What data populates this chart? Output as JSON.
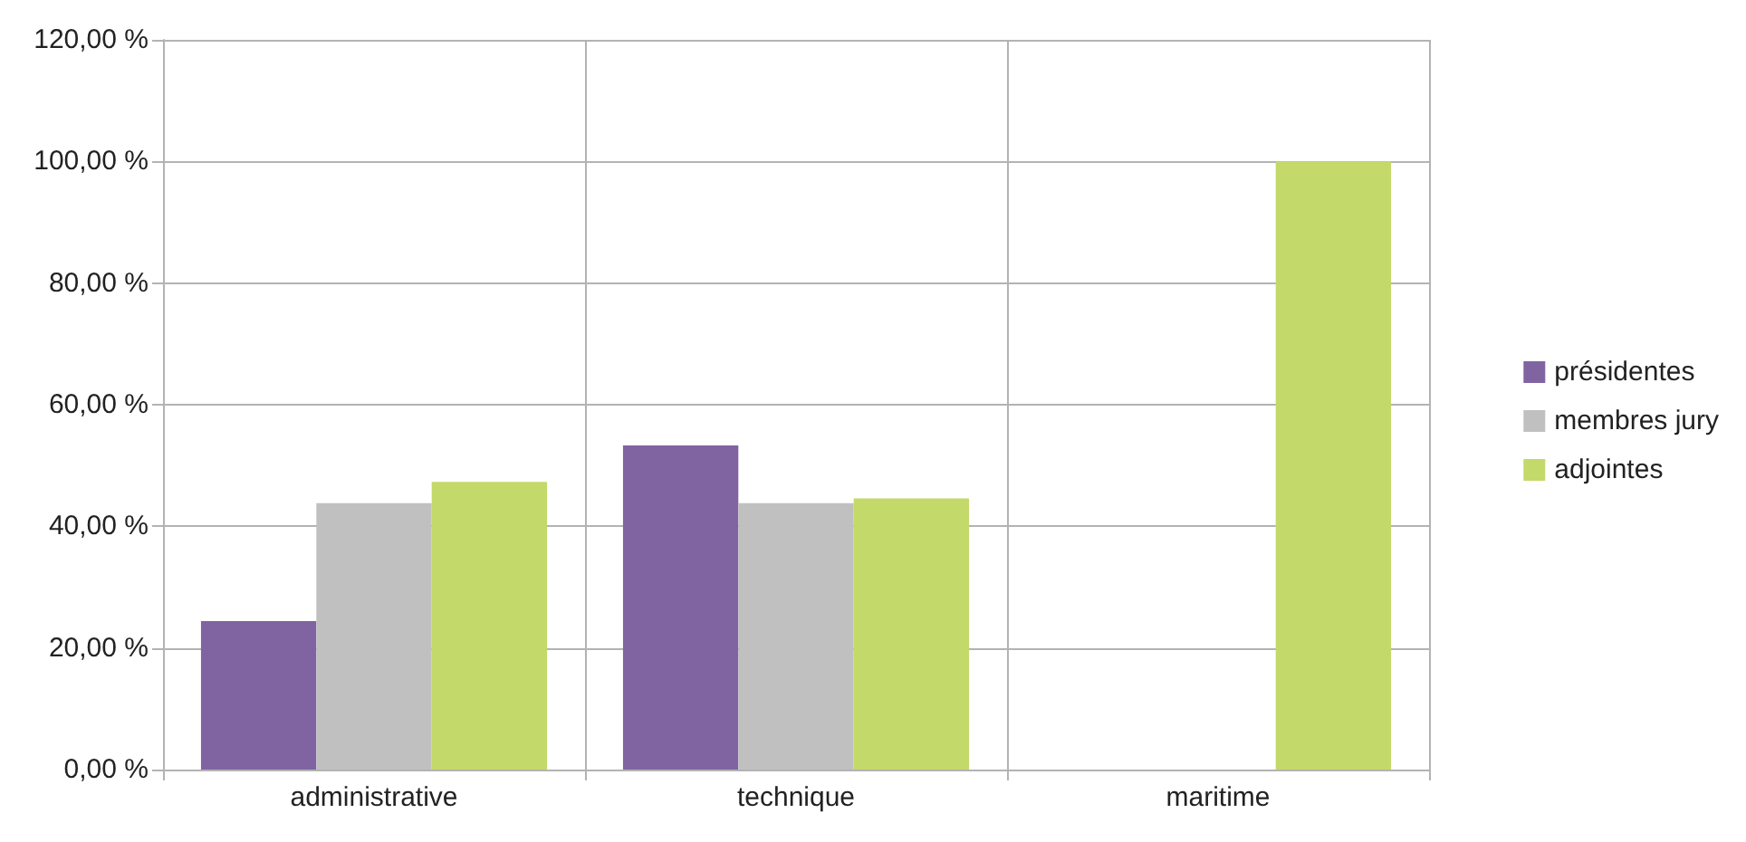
{
  "chart_data": {
    "type": "bar",
    "categories": [
      "administrative",
      "technique",
      "maritime"
    ],
    "series": [
      {
        "name": "présidentes",
        "color": "#8064a2",
        "values": [
          24.4,
          53.3,
          0
        ]
      },
      {
        "name": "membres jury",
        "color": "#c0c0c0",
        "values": [
          43.8,
          43.8,
          0
        ]
      },
      {
        "name": "adjointes",
        "color": "#c3d969",
        "values": [
          47.3,
          44.6,
          100
        ]
      }
    ],
    "ylim": [
      0,
      120
    ],
    "yticks": [
      {
        "value": 0,
        "label": "0,00 %"
      },
      {
        "value": 20,
        "label": "20,00 %"
      },
      {
        "value": 40,
        "label": "40,00 %"
      },
      {
        "value": 60,
        "label": "60,00 %"
      },
      {
        "value": 80,
        "label": "80,00 %"
      },
      {
        "value": 100,
        "label": "100,00 %"
      },
      {
        "value": 120,
        "label": "120,00 %"
      }
    ],
    "grid": true,
    "legend": "right"
  }
}
